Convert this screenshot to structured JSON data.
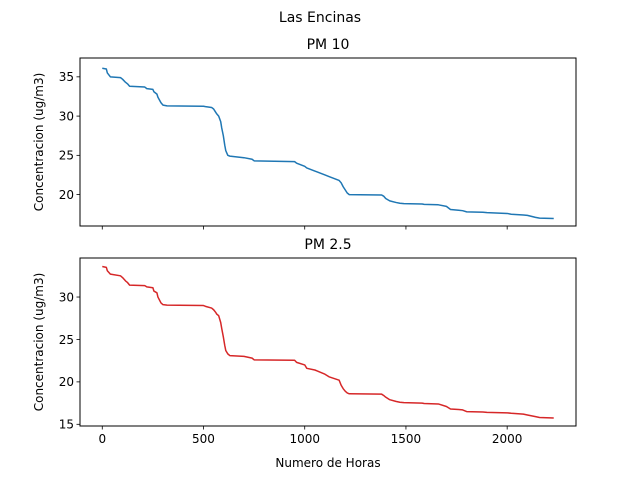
{
  "figure": {
    "suptitle": "Las Encinas",
    "background": "#ffffff"
  },
  "chart_data": [
    {
      "type": "line",
      "title": "PM 10",
      "xlabel": "",
      "ylabel": "Concentracion (ug/m3)",
      "xlim": [
        -110,
        2340
      ],
      "ylim": [
        16.0,
        37.4
      ],
      "xticks": [
        0,
        500,
        1000,
        1500,
        2000
      ],
      "xtick_labels_visible": false,
      "yticks": [
        20,
        25,
        30,
        35
      ],
      "color": "#1f77b4",
      "grid": false,
      "x": [
        0,
        20,
        25,
        40,
        90,
        100,
        115,
        125,
        135,
        210,
        220,
        250,
        255,
        270,
        275,
        290,
        300,
        320,
        500,
        510,
        540,
        550,
        560,
        565,
        575,
        585,
        590,
        598,
        605,
        610,
        620,
        630,
        700,
        740,
        750,
        950,
        960,
        1000,
        1010,
        1050,
        1060,
        1100,
        1120,
        1170,
        1180,
        1190,
        1200,
        1210,
        1220,
        1380,
        1390,
        1400,
        1420,
        1450,
        1470,
        1490,
        1580,
        1590,
        1660,
        1700,
        1720,
        1760,
        1780,
        1800,
        1880,
        1900,
        2000,
        2020,
        2080,
        2100,
        2140,
        2160,
        2230
      ],
      "y": [
        36.1,
        36.0,
        35.5,
        35.0,
        34.9,
        34.7,
        34.3,
        34.1,
        33.8,
        33.7,
        33.5,
        33.4,
        33.1,
        32.8,
        32.4,
        31.7,
        31.4,
        31.3,
        31.25,
        31.2,
        31.1,
        30.9,
        30.5,
        30.3,
        30.0,
        29.3,
        28.5,
        27.5,
        26.3,
        25.6,
        25.0,
        24.9,
        24.7,
        24.5,
        24.3,
        24.2,
        24.0,
        23.6,
        23.4,
        23.0,
        22.9,
        22.5,
        22.3,
        21.8,
        21.5,
        21.0,
        20.6,
        20.2,
        20.0,
        19.95,
        19.8,
        19.5,
        19.2,
        19.0,
        18.9,
        18.85,
        18.8,
        18.75,
        18.7,
        18.5,
        18.1,
        18.0,
        17.95,
        17.8,
        17.75,
        17.7,
        17.6,
        17.5,
        17.4,
        17.35,
        17.1,
        17.0,
        16.95
      ]
    },
    {
      "type": "line",
      "title": "PM 2.5",
      "xlabel": "Numero de Horas",
      "ylabel": "Concentracion (ug/m3)",
      "xlim": [
        -110,
        2340
      ],
      "ylim": [
        14.8,
        34.6
      ],
      "xticks": [
        0,
        500,
        1000,
        1500,
        2000
      ],
      "xtick_labels_visible": true,
      "yticks": [
        15,
        20,
        25,
        30
      ],
      "color": "#d62728",
      "grid": false,
      "x": [
        0,
        20,
        25,
        40,
        90,
        100,
        115,
        125,
        135,
        210,
        220,
        250,
        255,
        270,
        275,
        290,
        300,
        320,
        500,
        510,
        540,
        550,
        560,
        565,
        575,
        585,
        590,
        598,
        605,
        610,
        620,
        630,
        700,
        740,
        750,
        950,
        960,
        1000,
        1010,
        1050,
        1060,
        1100,
        1120,
        1170,
        1180,
        1190,
        1200,
        1210,
        1220,
        1380,
        1390,
        1400,
        1420,
        1450,
        1470,
        1490,
        1580,
        1590,
        1660,
        1700,
        1720,
        1760,
        1780,
        1800,
        1880,
        1900,
        2000,
        2020,
        2080,
        2100,
        2140,
        2160,
        2230
      ],
      "y": [
        33.6,
        33.5,
        33.1,
        32.7,
        32.5,
        32.3,
        31.9,
        31.7,
        31.4,
        31.35,
        31.2,
        31.1,
        30.7,
        30.5,
        30.0,
        29.3,
        29.1,
        29.05,
        29.0,
        28.9,
        28.7,
        28.5,
        28.2,
        28.0,
        27.8,
        27.0,
        26.3,
        25.3,
        24.3,
        23.7,
        23.3,
        23.1,
        23.0,
        22.8,
        22.6,
        22.55,
        22.3,
        22.0,
        21.6,
        21.4,
        21.3,
        20.9,
        20.6,
        20.2,
        19.6,
        19.2,
        18.9,
        18.7,
        18.6,
        18.55,
        18.4,
        18.2,
        17.9,
        17.7,
        17.6,
        17.55,
        17.5,
        17.45,
        17.4,
        17.1,
        16.8,
        16.75,
        16.7,
        16.5,
        16.45,
        16.4,
        16.35,
        16.3,
        16.2,
        16.1,
        15.9,
        15.8,
        15.75
      ]
    }
  ]
}
